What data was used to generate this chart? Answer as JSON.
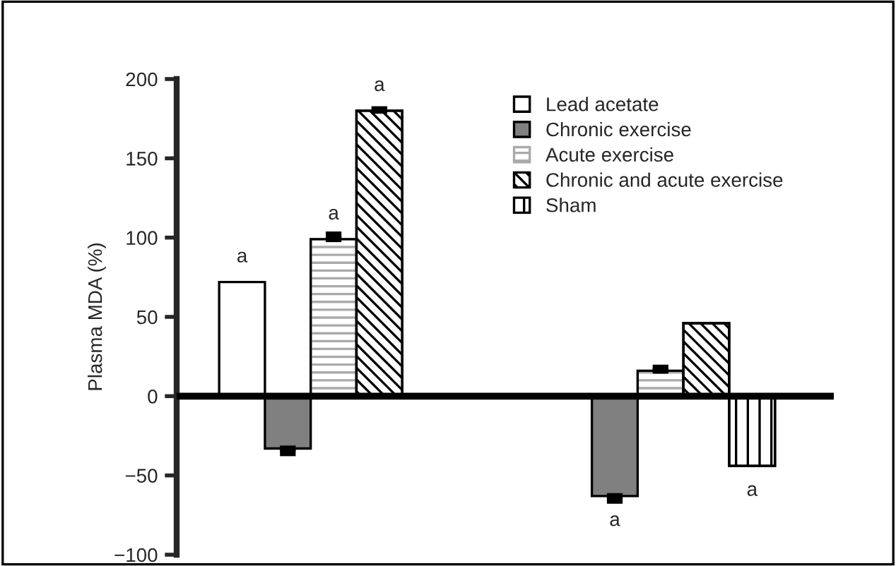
{
  "chart_data": {
    "type": "bar",
    "ylabel": "Plasma MDA (%)",
    "categories": [
      null,
      null
    ],
    "ylim": [
      -100,
      200
    ],
    "yticks": [
      {
        "value": -100,
        "label": "−100"
      },
      {
        "value": -50,
        "label": "−50"
      },
      0,
      50,
      100,
      150,
      200
    ],
    "grid": false,
    "legend": "top right",
    "ref_lines": [
      {
        "axis": "y",
        "value": 0
      }
    ],
    "series": [
      {
        "name": "Lead acetate",
        "color": "#ffffff",
        "values": [
          72,
          null
        ],
        "value_labels": [
          "a",
          null
        ]
      },
      {
        "name": "Chronic exercise",
        "color": "#808080",
        "values": [
          -33,
          -63
        ],
        "errors": [
          3,
          3
        ],
        "value_labels": [
          null,
          "a"
        ]
      },
      {
        "name": "Acute exercise",
        "color": "#aaaaaa",
        "values": [
          99,
          16
        ],
        "errors": [
          3,
          2
        ],
        "value_labels": [
          "a",
          null
        ]
      },
      {
        "name": "Chronic and acute exercise",
        "color": "#000000",
        "values": [
          180,
          46
        ],
        "errors": [
          1,
          null
        ],
        "value_labels": [
          "a",
          null
        ]
      },
      {
        "name": "Sham",
        "color": "#000000",
        "values": [
          null,
          -44
        ],
        "value_labels": [
          null,
          "a"
        ]
      }
    ]
  }
}
